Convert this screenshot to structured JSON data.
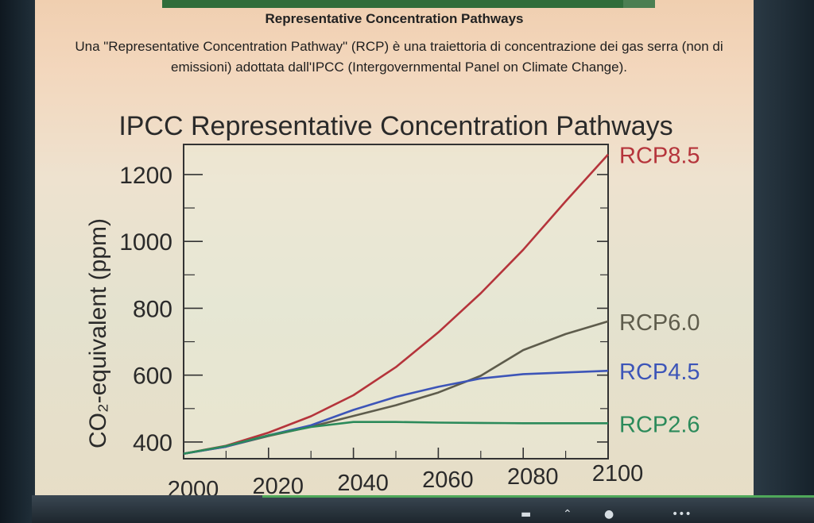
{
  "slide": {
    "heading": "Representative Concentration Pathways",
    "description": "Una \"Representative Concentration Pathway\" (RCP) è una traiettoria di concentrazione dei gas serra (non di emissioni) adottata dall'IPCC (Intergovernmental Panel on Climate Change)."
  },
  "chart_data": {
    "type": "line",
    "title": "IPCC Representative Concentration Pathways",
    "xlabel": "",
    "ylabel": "CO₂-equivalent (ppm)",
    "xlim": [
      2000,
      2100
    ],
    "ylim": [
      350,
      1290
    ],
    "x_ticks": [
      2000,
      2020,
      2040,
      2060,
      2080,
      2100
    ],
    "y_ticks": [
      400,
      600,
      800,
      1000,
      1200
    ],
    "grid": false,
    "legend": "labels at right end of each line",
    "series": [
      {
        "name": "RCP8.5",
        "color": "#b5343b",
        "x": [
          2000,
          2010,
          2020,
          2030,
          2040,
          2050,
          2060,
          2070,
          2080,
          2090,
          2100
        ],
        "y": [
          365,
          389,
          428,
          477,
          540,
          624,
          728,
          845,
          975,
          1120,
          1260
        ]
      },
      {
        "name": "RCP6.0",
        "color": "#5e5c4c",
        "x": [
          2000,
          2010,
          2020,
          2030,
          2040,
          2050,
          2060,
          2070,
          2080,
          2090,
          2100
        ],
        "y": [
          365,
          386,
          418,
          446,
          478,
          510,
          548,
          598,
          675,
          723,
          761
        ]
      },
      {
        "name": "RCP4.5",
        "color": "#3d55b8",
        "x": [
          2000,
          2010,
          2020,
          2030,
          2040,
          2050,
          2060,
          2070,
          2080,
          2090,
          2100
        ],
        "y": [
          365,
          386,
          420,
          450,
          496,
          535,
          565,
          590,
          603,
          608,
          613
        ]
      },
      {
        "name": "RCP2.6",
        "color": "#2b8a5a",
        "x": [
          2000,
          2010,
          2020,
          2030,
          2040,
          2050,
          2060,
          2070,
          2080,
          2090,
          2100
        ],
        "y": [
          365,
          388,
          420,
          445,
          460,
          460,
          458,
          457,
          456,
          456,
          456
        ]
      }
    ]
  },
  "taskbar": {
    "icons": [
      "more-icon",
      "chevron-up-icon",
      "bot-icon",
      "dots-icon"
    ]
  }
}
